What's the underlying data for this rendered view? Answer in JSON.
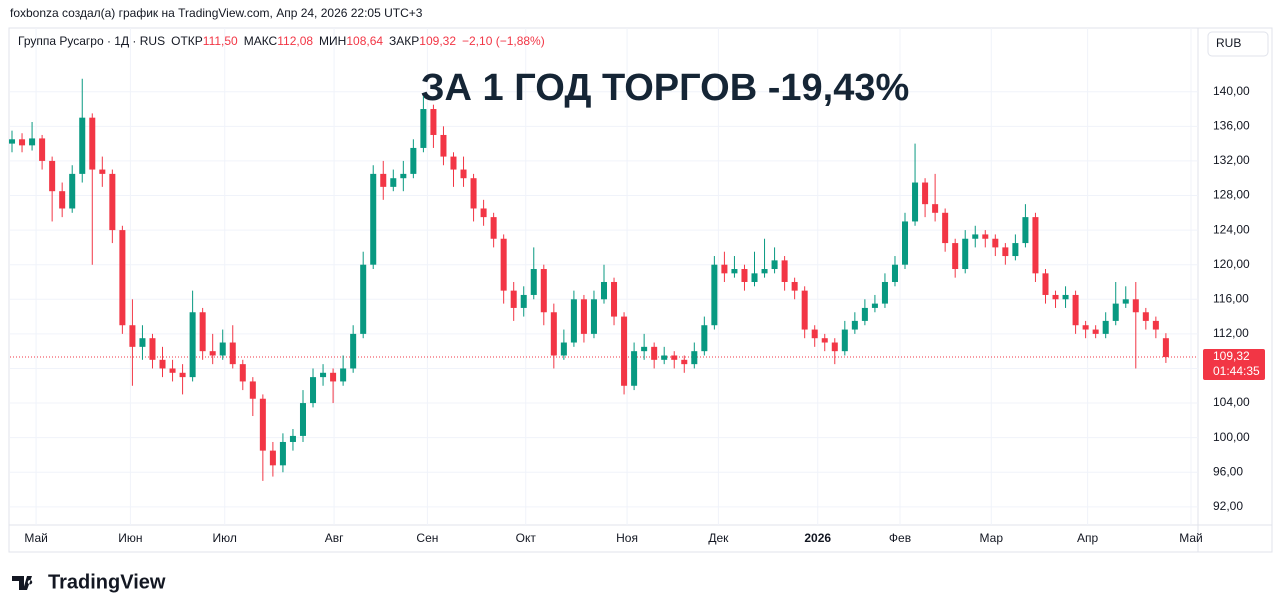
{
  "header": "foxbonza создал(а) график на TradingView.com, Апр 24, 2026 22:05 UTC+3",
  "legend": {
    "symbol": "Группа Русагро · 1Д · RUS",
    "open_label": "ОТКР",
    "open": "111,50",
    "high_label": "МАКС",
    "high": "112,08",
    "low_label": "МИН",
    "low": "108,64",
    "close_label": "ЗАКР",
    "close": "109,32",
    "change": "−2,10 (−1,88%)"
  },
  "currency": "RUB",
  "countdown": "01:44:35",
  "logo": "TradingView",
  "chart_data": {
    "type": "candlestick",
    "title": "ЗА 1 ГОД ТОРГОВ -19,43%",
    "up_color": "#089981",
    "down_color": "#f23645",
    "grid": true,
    "last_price": {
      "value": 109.32,
      "label": "109,32"
    },
    "xlim": [
      -0.2,
      118.2
    ],
    "xticks": [
      {
        "value": 2.4,
        "label": "Май"
      },
      {
        "value": 11.8,
        "label": "Июн"
      },
      {
        "value": 21.2,
        "label": "Июл"
      },
      {
        "value": 32.1,
        "label": "Авг"
      },
      {
        "value": 41.4,
        "label": "Сен"
      },
      {
        "value": 51.2,
        "label": "Окт"
      },
      {
        "value": 61.3,
        "label": "Ноя"
      },
      {
        "value": 70.4,
        "label": "Дек"
      },
      {
        "value": 80.3,
        "label": "2026"
      },
      {
        "value": 88.5,
        "label": "Фев"
      },
      {
        "value": 97.6,
        "label": "Мар"
      },
      {
        "value": 107.2,
        "label": "Апр"
      },
      {
        "value": 117.5,
        "label": "Май"
      }
    ],
    "ylim": [
      89.9,
      143.9
    ],
    "yticks": [
      {
        "value": 92,
        "label": "92,00"
      },
      {
        "value": 96,
        "label": "96,00"
      },
      {
        "value": 100,
        "label": "100,00"
      },
      {
        "value": 104,
        "label": "104,00"
      },
      {
        "value": 108,
        "label": "108,00"
      },
      {
        "value": 112,
        "label": "112,00"
      },
      {
        "value": 116,
        "label": "116,00"
      },
      {
        "value": 120,
        "label": "120,00"
      },
      {
        "value": 124,
        "label": "124,00"
      },
      {
        "value": 128,
        "label": "128,00"
      },
      {
        "value": 132,
        "label": "132,00"
      },
      {
        "value": 136,
        "label": "136,00"
      },
      {
        "value": 140,
        "label": "140,00"
      }
    ],
    "ohlc": [
      [
        134.0,
        135.5,
        133.0,
        134.5
      ],
      [
        134.5,
        135.2,
        133.0,
        133.8
      ],
      [
        133.8,
        136.5,
        133.2,
        134.6
      ],
      [
        134.6,
        135.0,
        131.0,
        132.0
      ],
      [
        132.0,
        132.5,
        125.0,
        128.5
      ],
      [
        128.5,
        129.5,
        125.5,
        126.5
      ],
      [
        126.5,
        131.5,
        126.0,
        130.5
      ],
      [
        130.5,
        141.5,
        129.5,
        137.0
      ],
      [
        137.0,
        137.5,
        120.0,
        131.0
      ],
      [
        131.0,
        132.5,
        129.0,
        130.5
      ],
      [
        130.5,
        131.0,
        122.5,
        124.0
      ],
      [
        124.0,
        124.5,
        112.0,
        113.0
      ],
      [
        113.0,
        116.0,
        106.0,
        110.5
      ],
      [
        110.5,
        113.0,
        109.0,
        111.5
      ],
      [
        111.5,
        112.0,
        108.0,
        109.0
      ],
      [
        109.0,
        110.5,
        107.0,
        108.0
      ],
      [
        108.0,
        109.0,
        106.5,
        107.5
      ],
      [
        107.5,
        108.5,
        105.0,
        107.0
      ],
      [
        107.0,
        117.0,
        106.5,
        114.5
      ],
      [
        114.5,
        115.0,
        109.0,
        110.0
      ],
      [
        110.0,
        112.0,
        108.5,
        109.5
      ],
      [
        109.5,
        112.5,
        109.0,
        111.0
      ],
      [
        111.0,
        113.0,
        108.0,
        108.5
      ],
      [
        108.5,
        109.0,
        105.5,
        106.5
      ],
      [
        106.5,
        107.0,
        102.5,
        104.5
      ],
      [
        104.5,
        105.0,
        95.0,
        98.5
      ],
      [
        98.5,
        99.5,
        95.5,
        96.8
      ],
      [
        96.8,
        100.5,
        96.0,
        99.5
      ],
      [
        99.5,
        101.0,
        98.5,
        100.2
      ],
      [
        100.2,
        105.5,
        99.5,
        104.0
      ],
      [
        104.0,
        108.0,
        103.5,
        107.0
      ],
      [
        107.0,
        108.5,
        106.0,
        107.5
      ],
      [
        107.5,
        108.0,
        104.0,
        106.5
      ],
      [
        106.5,
        109.5,
        106.0,
        108.0
      ],
      [
        108.0,
        113.0,
        107.5,
        112.0
      ],
      [
        112.0,
        121.5,
        111.5,
        120.0
      ],
      [
        120.0,
        131.5,
        119.5,
        130.5
      ],
      [
        130.5,
        132.0,
        127.5,
        129.0
      ],
      [
        129.0,
        131.0,
        128.5,
        130.0
      ],
      [
        130.0,
        132.0,
        128.5,
        130.5
      ],
      [
        130.5,
        134.5,
        130.0,
        133.5
      ],
      [
        133.5,
        139.5,
        133.0,
        138.0
      ],
      [
        138.0,
        138.5,
        133.5,
        135.0
      ],
      [
        135.0,
        136.0,
        131.5,
        132.5
      ],
      [
        132.5,
        133.0,
        129.0,
        131.0
      ],
      [
        131.0,
        132.5,
        129.0,
        130.0
      ],
      [
        130.0,
        130.5,
        125.0,
        126.5
      ],
      [
        126.5,
        127.5,
        124.5,
        125.5
      ],
      [
        125.5,
        126.0,
        122.0,
        123.0
      ],
      [
        123.0,
        123.5,
        115.5,
        117.0
      ],
      [
        117.0,
        118.0,
        113.5,
        115.0
      ],
      [
        115.0,
        117.5,
        114.0,
        116.5
      ],
      [
        116.5,
        122.0,
        116.0,
        119.5
      ],
      [
        119.5,
        120.0,
        113.0,
        114.5
      ],
      [
        114.5,
        115.5,
        108.0,
        109.5
      ],
      [
        109.5,
        112.5,
        109.0,
        111.0
      ],
      [
        111.0,
        117.0,
        110.5,
        116.0
      ],
      [
        116.0,
        116.5,
        111.0,
        112.0
      ],
      [
        112.0,
        117.0,
        111.5,
        116.0
      ],
      [
        116.0,
        120.0,
        115.5,
        118.0
      ],
      [
        118.0,
        118.5,
        113.0,
        114.0
      ],
      [
        114.0,
        114.5,
        105.0,
        106.0
      ],
      [
        106.0,
        111.0,
        105.5,
        110.0
      ],
      [
        110.0,
        112.0,
        109.0,
        110.5
      ],
      [
        110.5,
        111.0,
        108.0,
        109.0
      ],
      [
        109.0,
        110.5,
        108.5,
        109.5
      ],
      [
        109.5,
        110.0,
        108.0,
        109.0
      ],
      [
        109.0,
        109.5,
        107.5,
        108.5
      ],
      [
        108.5,
        111.0,
        108.0,
        110.0
      ],
      [
        110.0,
        114.0,
        109.5,
        113.0
      ],
      [
        113.0,
        121.0,
        112.5,
        120.0
      ],
      [
        120.0,
        121.5,
        118.0,
        119.0
      ],
      [
        119.0,
        121.0,
        118.5,
        119.5
      ],
      [
        119.5,
        120.0,
        117.0,
        118.0
      ],
      [
        118.0,
        121.5,
        117.5,
        119.0
      ],
      [
        119.0,
        123.0,
        118.5,
        119.5
      ],
      [
        119.5,
        122.0,
        119.0,
        120.5
      ],
      [
        120.5,
        121.0,
        117.0,
        118.0
      ],
      [
        118.0,
        118.5,
        116.0,
        117.0
      ],
      [
        117.0,
        117.5,
        111.5,
        112.5
      ],
      [
        112.5,
        113.0,
        110.5,
        111.5
      ],
      [
        111.5,
        112.0,
        110.0,
        111.0
      ],
      [
        111.0,
        111.5,
        108.5,
        110.0
      ],
      [
        110.0,
        113.5,
        109.5,
        112.5
      ],
      [
        112.5,
        114.5,
        112.0,
        113.5
      ],
      [
        113.5,
        116.0,
        113.0,
        115.0
      ],
      [
        115.0,
        116.5,
        114.5,
        115.5
      ],
      [
        115.5,
        119.0,
        115.0,
        118.0
      ],
      [
        118.0,
        121.0,
        117.5,
        120.0
      ],
      [
        120.0,
        126.0,
        119.5,
        125.0
      ],
      [
        125.0,
        134.0,
        124.5,
        129.5
      ],
      [
        129.5,
        130.0,
        125.5,
        127.0
      ],
      [
        127.0,
        130.5,
        125.0,
        126.0
      ],
      [
        126.0,
        126.5,
        121.5,
        122.5
      ],
      [
        122.5,
        123.0,
        118.5,
        119.5
      ],
      [
        119.5,
        124.0,
        119.0,
        123.0
      ],
      [
        123.0,
        124.5,
        122.0,
        123.5
      ],
      [
        123.5,
        124.0,
        122.0,
        123.0
      ],
      [
        123.0,
        123.5,
        121.0,
        122.0
      ],
      [
        122.0,
        122.5,
        120.0,
        121.0
      ],
      [
        121.0,
        123.5,
        120.5,
        122.5
      ],
      [
        122.5,
        127.0,
        122.0,
        125.5
      ],
      [
        125.5,
        126.0,
        118.0,
        119.0
      ],
      [
        119.0,
        119.5,
        115.5,
        116.5
      ],
      [
        116.5,
        117.0,
        115.0,
        116.0
      ],
      [
        116.0,
        117.5,
        115.0,
        116.5
      ],
      [
        116.5,
        117.0,
        112.0,
        113.0
      ],
      [
        113.0,
        113.5,
        111.5,
        112.5
      ],
      [
        112.5,
        113.0,
        111.5,
        112.0
      ],
      [
        112.0,
        114.5,
        111.5,
        113.5
      ],
      [
        113.5,
        118.0,
        113.0,
        115.5
      ],
      [
        115.5,
        117.5,
        115.0,
        116.0
      ],
      [
        116.0,
        118.0,
        108.0,
        114.5
      ],
      [
        114.5,
        115.0,
        112.5,
        113.5
      ],
      [
        113.5,
        114.0,
        111.5,
        112.5
      ],
      [
        111.5,
        112.08,
        108.64,
        109.32
      ]
    ]
  }
}
